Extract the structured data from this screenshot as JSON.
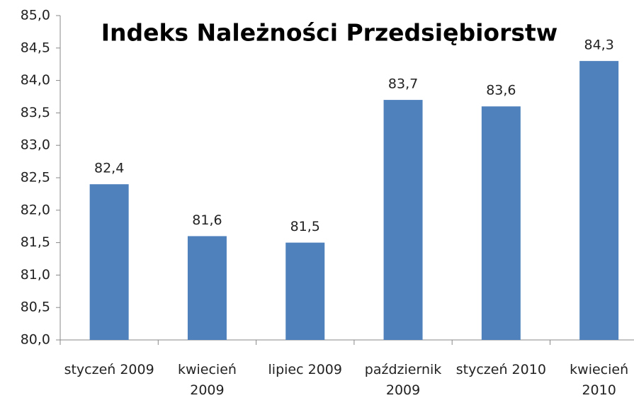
{
  "chart_data": {
    "type": "bar",
    "title": "Indeks Należności Przedsiębiorstw",
    "categories": [
      "styczeń 2009",
      "kwiecień 2009",
      "lipiec 2009",
      "październik 2009",
      "styczeń 2010",
      "kwiecień 2010"
    ],
    "values": [
      82.4,
      81.6,
      81.5,
      83.7,
      83.6,
      84.3
    ],
    "value_labels": [
      "82,4",
      "81,6",
      "81,5",
      "83,7",
      "83,6",
      "84,3"
    ],
    "color": "#4f81bd",
    "ylim": [
      80,
      85
    ],
    "yticks": [
      {
        "value": 80,
        "label": "80,0"
      },
      {
        "value": 80.5,
        "label": "80,5"
      },
      {
        "value": 81,
        "label": "81,0"
      },
      {
        "value": 81.5,
        "label": "81,5"
      },
      {
        "value": 82,
        "label": "82,0"
      },
      {
        "value": 82.5,
        "label": "82,5"
      },
      {
        "value": 83,
        "label": "83,0"
      },
      {
        "value": 83.5,
        "label": "83,5"
      },
      {
        "value": 84,
        "label": "84,0"
      },
      {
        "value": 84.5,
        "label": "84,5"
      },
      {
        "value": 85,
        "label": "85,0"
      }
    ],
    "grid": false
  }
}
